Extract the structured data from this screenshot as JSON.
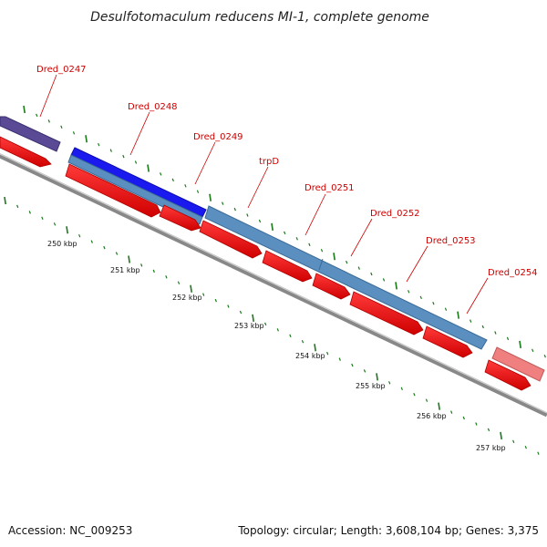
{
  "title": "Desulfotomaculum reducens MI-1, complete genome",
  "footer": {
    "accession": "Accession: NC_009253",
    "summary": "Topology: circular; Length: 3,608,104 bp; Genes: 3,375"
  },
  "colors": {
    "cds": "#ff0000",
    "gene_blue": "#5a8fc0",
    "gene_dark_blue": "#1a1aee",
    "gene_purple": "#5a4a96",
    "gene_pink": "#f08080",
    "backbone": "#888888",
    "tick": "#1a7a1a",
    "label": "#cc0000"
  },
  "scale_labels": [
    "250 kbp",
    "251 kbp",
    "252 kbp",
    "253 kbp",
    "254 kbp",
    "255 kbp",
    "256 kbp",
    "257 kbp"
  ],
  "gene_labels": [
    "Dred_0247",
    "Dred_0248",
    "Dred_0249",
    "trpD",
    "Dred_0251",
    "Dred_0252",
    "Dred_0253",
    "Dred_0254"
  ]
}
